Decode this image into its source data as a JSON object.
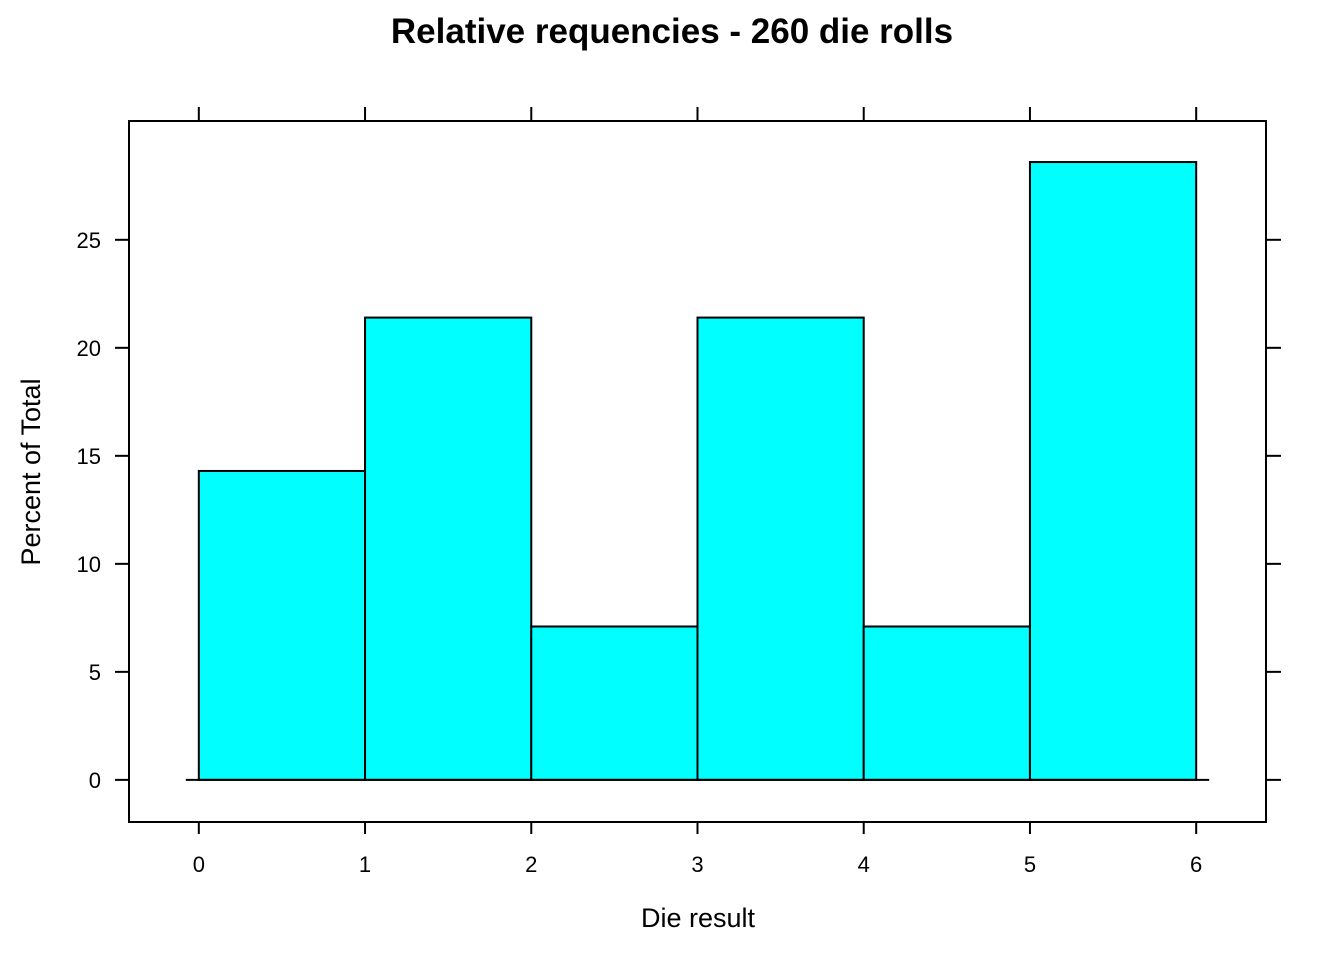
{
  "chart_data": {
    "type": "bar",
    "title": "Relative requencies - 260 die rolls",
    "xlabel": "Die result",
    "ylabel": "Percent of Total",
    "bins": [
      {
        "from": 0,
        "to": 1,
        "value": 14.3
      },
      {
        "from": 1,
        "to": 2,
        "value": 21.4
      },
      {
        "from": 2,
        "to": 3,
        "value": 7.1
      },
      {
        "from": 3,
        "to": 4,
        "value": 21.4
      },
      {
        "from": 4,
        "to": 5,
        "value": 7.1
      },
      {
        "from": 5,
        "to": 6,
        "value": 28.6
      }
    ],
    "xlim": [
      -0.42,
      6.42
    ],
    "ylim": [
      -1.95,
      30.5
    ],
    "xticks": [
      "0",
      "1",
      "2",
      "3",
      "4",
      "5",
      "6"
    ],
    "yticks": [
      "0",
      "5",
      "10",
      "15",
      "20",
      "25"
    ],
    "bar_color": "#00FFFF",
    "grid": false
  }
}
